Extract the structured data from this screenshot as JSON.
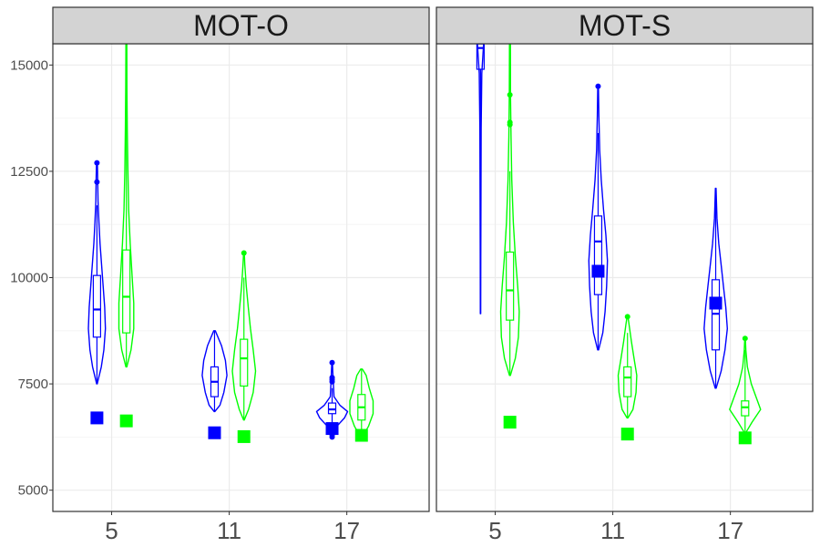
{
  "chart_data": {
    "type": "violin",
    "y_axis": {
      "range": [
        4500,
        15500
      ],
      "ticks": [
        5000,
        7500,
        10000,
        12500,
        15000
      ],
      "tick_labels": [
        "5000",
        "7500",
        "10000",
        "12500",
        "15000"
      ]
    },
    "x_axis": {
      "categories": [
        5,
        11,
        17
      ],
      "tick_labels": [
        "5",
        "11",
        "17"
      ],
      "range": [
        0.5,
        3.7
      ]
    },
    "grid": true,
    "colors": {
      "blue": "#0000ff",
      "green": "#00ff00",
      "strip_fill": "#d3d3d3",
      "grid": "#ebebeb"
    },
    "panels": [
      {
        "label": "MOT-O",
        "groups": [
          {
            "x": 5,
            "series": "blue",
            "offset": -0.125,
            "violin": [
              [
                7500,
                0.02
              ],
              [
                7900,
                0.28
              ],
              [
                8300,
                0.45
              ],
              [
                8800,
                0.55
              ],
              [
                9300,
                0.5
              ],
              [
                9800,
                0.4
              ],
              [
                10300,
                0.3
              ],
              [
                10800,
                0.2
              ],
              [
                11300,
                0.13
              ],
              [
                11800,
                0.07
              ],
              [
                12300,
                0.05
              ],
              [
                12700,
                0.03
              ]
            ],
            "box": {
              "q1": 8600,
              "median": 9250,
              "q3": 10050,
              "whisker_low": 7500,
              "whisker_high": 11700
            },
            "outliers": [
              12250,
              12700
            ],
            "square": 6700
          },
          {
            "x": 5,
            "series": "green",
            "offset": 0.125,
            "violin": [
              [
                7900,
                0.03
              ],
              [
                8300,
                0.3
              ],
              [
                8800,
                0.48
              ],
              [
                9400,
                0.48
              ],
              [
                10000,
                0.38
              ],
              [
                10800,
                0.25
              ],
              [
                11600,
                0.15
              ],
              [
                12500,
                0.1
              ],
              [
                13500,
                0.06
              ],
              [
                14500,
                0.04
              ],
              [
                15500,
                0.03
              ]
            ],
            "box": {
              "q1": 8700,
              "median": 9550,
              "q3": 10650,
              "whisker_low": 7900,
              "whisker_high": 15500
            },
            "outliers": [],
            "square": 6630
          },
          {
            "x": 11,
            "series": "blue",
            "offset": -0.125,
            "violin": [
              [
                6850,
                0.02
              ],
              [
                7000,
                0.35
              ],
              [
                7300,
                0.6
              ],
              [
                7700,
                0.8
              ],
              [
                8050,
                0.7
              ],
              [
                8400,
                0.45
              ],
              [
                8750,
                0.05
              ]
            ],
            "box": {
              "q1": 7200,
              "median": 7550,
              "q3": 7900,
              "whisker_low": 6850,
              "whisker_high": 8750
            },
            "outliers": [],
            "square": 6350
          },
          {
            "x": 11,
            "series": "green",
            "offset": 0.125,
            "violin": [
              [
                6650,
                0.02
              ],
              [
                6900,
                0.3
              ],
              [
                7300,
                0.6
              ],
              [
                7800,
                0.75
              ],
              [
                8300,
                0.6
              ],
              [
                8800,
                0.42
              ],
              [
                9300,
                0.28
              ],
              [
                9800,
                0.15
              ],
              [
                10300,
                0.06
              ],
              [
                10600,
                0.02
              ]
            ],
            "box": {
              "q1": 7450,
              "median": 8100,
              "q3": 8550,
              "whisker_low": 6650,
              "whisker_high": 10000
            },
            "outliers": [
              10580
            ],
            "square": 6260
          },
          {
            "x": 17,
            "series": "blue",
            "offset": -0.125,
            "violin": [
              [
                6250,
                0.02
              ],
              [
                6500,
                0.3
              ],
              [
                6700,
                0.8
              ],
              [
                6850,
                1.0
              ],
              [
                7000,
                0.5
              ],
              [
                7200,
                0.12
              ],
              [
                7500,
                0.08
              ],
              [
                7800,
                0.04
              ],
              [
                8000,
                0.02
              ]
            ],
            "box": {
              "q1": 6800,
              "median": 6900,
              "q3": 7050,
              "whisker_low": 6500,
              "whisker_high": 7400
            },
            "outliers": [
              7550,
              7600,
              7650,
              8000,
              6250,
              6300
            ],
            "square": 6450
          },
          {
            "x": 17,
            "series": "green",
            "offset": 0.125,
            "violin": [
              [
                6250,
                0.05
              ],
              [
                6500,
                0.45
              ],
              [
                6800,
                0.75
              ],
              [
                7100,
                0.75
              ],
              [
                7400,
                0.5
              ],
              [
                7700,
                0.3
              ],
              [
                7850,
                0.05
              ]
            ],
            "box": {
              "q1": 6650,
              "median": 6950,
              "q3": 7250,
              "whisker_low": 6250,
              "whisker_high": 7850
            },
            "outliers": [],
            "square": 6290
          }
        ]
      },
      {
        "label": "MOT-S",
        "groups": [
          {
            "x": 5,
            "series": "blue",
            "offset": -0.125,
            "violin": [
              [
                9150,
                0.01
              ],
              [
                10500,
                0.02
              ],
              [
                12000,
                0.03
              ],
              [
                13500,
                0.04
              ],
              [
                14800,
                0.08
              ],
              [
                15500,
                0.2
              ]
            ],
            "box": {
              "q1": 14900,
              "median": 15400,
              "q3": 15500,
              "whisker_low": 9150,
              "whisker_high": 15500
            },
            "outliers": [],
            "square": null
          },
          {
            "x": 5,
            "series": "green",
            "offset": 0.125,
            "violin": [
              [
                7700,
                0.03
              ],
              [
                8100,
                0.35
              ],
              [
                8600,
                0.55
              ],
              [
                9200,
                0.6
              ],
              [
                9800,
                0.5
              ],
              [
                10500,
                0.35
              ],
              [
                11300,
                0.22
              ],
              [
                12300,
                0.12
              ],
              [
                13300,
                0.07
              ],
              [
                14300,
                0.04
              ],
              [
                15500,
                0.03
              ]
            ],
            "box": {
              "q1": 9000,
              "median": 9700,
              "q3": 10600,
              "whisker_low": 7700,
              "whisker_high": 12500
            },
            "outliers": [
              13600,
              13650,
              14300
            ],
            "square": 6600
          },
          {
            "x": 11,
            "series": "blue",
            "offset": -0.125,
            "violin": [
              [
                8300,
                0.03
              ],
              [
                8700,
                0.3
              ],
              [
                9200,
                0.45
              ],
              [
                9800,
                0.55
              ],
              [
                10400,
                0.6
              ],
              [
                11000,
                0.5
              ],
              [
                11600,
                0.35
              ],
              [
                12300,
                0.2
              ],
              [
                13000,
                0.1
              ],
              [
                13800,
                0.05
              ],
              [
                14500,
                0.02
              ]
            ],
            "box": {
              "q1": 9600,
              "median": 10850,
              "q3": 11450,
              "whisker_low": 8300,
              "whisker_high": 13400
            },
            "outliers": [
              14500
            ],
            "square": 10150
          },
          {
            "x": 11,
            "series": "green",
            "offset": 0.125,
            "violin": [
              [
                6700,
                0.03
              ],
              [
                6900,
                0.35
              ],
              [
                7300,
                0.55
              ],
              [
                7700,
                0.6
              ],
              [
                8100,
                0.42
              ],
              [
                8500,
                0.25
              ],
              [
                8900,
                0.1
              ],
              [
                9100,
                0.02
              ]
            ],
            "box": {
              "q1": 7200,
              "median": 7650,
              "q3": 7900,
              "whisker_low": 6700,
              "whisker_high": 8700
            },
            "outliers": [
              9080
            ],
            "square": 6320
          },
          {
            "x": 17,
            "series": "blue",
            "offset": -0.125,
            "violin": [
              [
                7400,
                0.03
              ],
              [
                7800,
                0.35
              ],
              [
                8300,
                0.6
              ],
              [
                8800,
                0.75
              ],
              [
                9300,
                0.65
              ],
              [
                9800,
                0.5
              ],
              [
                10300,
                0.35
              ],
              [
                10800,
                0.2
              ],
              [
                11400,
                0.08
              ],
              [
                12100,
                0.02
              ]
            ],
            "box": {
              "q1": 8300,
              "median": 9150,
              "q3": 9950,
              "whisker_low": 7400,
              "whisker_high": 12100
            },
            "outliers": [],
            "square": 9400
          },
          {
            "x": 17,
            "series": "green",
            "offset": 0.125,
            "violin": [
              [
                6350,
                0.04
              ],
              [
                6600,
                0.45
              ],
              [
                6900,
                1.0
              ],
              [
                7200,
                0.7
              ],
              [
                7500,
                0.4
              ],
              [
                7900,
                0.15
              ],
              [
                8300,
                0.05
              ],
              [
                8550,
                0.02
              ]
            ],
            "box": {
              "q1": 6750,
              "median": 6950,
              "q3": 7100,
              "whisker_low": 6350,
              "whisker_high": 8300
            },
            "outliers": [
              8570
            ],
            "square": 6230
          }
        ]
      }
    ]
  }
}
